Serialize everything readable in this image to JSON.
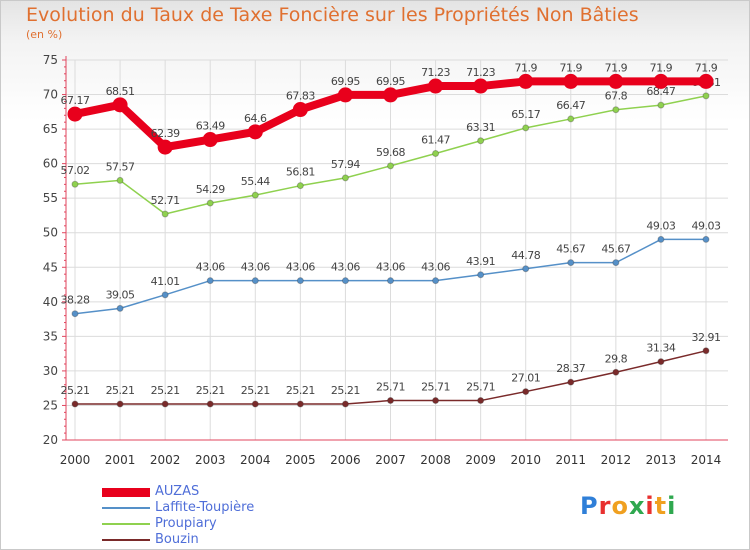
{
  "header": {
    "title": "Evolution du Taux de Taxe Foncière sur les Propriétés Non Bâties",
    "unit": "(en %)"
  },
  "logo": {
    "text": "Proxiti",
    "letter_colors": [
      "#2f7fd8",
      "#e8302f",
      "#f0a020",
      "#2fa84f",
      "#e8302f",
      "#f0a020",
      "#2fa84f"
    ]
  },
  "chart_data": {
    "type": "line",
    "title": "Evolution du Taux de Taxe Foncière sur les Propriétés Non Bâties",
    "ylabel": "(en %)",
    "x": [
      "2000",
      "2001",
      "2002",
      "2003",
      "2004",
      "2005",
      "2006",
      "2007",
      "2008",
      "2009",
      "2010",
      "2011",
      "2012",
      "2013",
      "2014"
    ],
    "ylim": [
      20,
      75
    ],
    "yticks": [
      20,
      25,
      30,
      35,
      40,
      45,
      50,
      55,
      60,
      65,
      70,
      75
    ],
    "grid": true,
    "legend_position": "bottom-left",
    "series": [
      {
        "name": "AUZAS",
        "color": "#e8001c",
        "emphasis": true,
        "values": [
          67.17,
          68.51,
          62.39,
          63.49,
          64.6,
          67.83,
          69.95,
          69.95,
          71.23,
          71.23,
          71.9,
          71.9,
          71.9,
          71.9,
          71.9
        ],
        "labels": [
          "67.17",
          "68.51",
          "62.39",
          "63.49",
          "64.6",
          "67.83",
          "69.95",
          "69.95",
          "71.23",
          "71.23",
          "71.9",
          "71.9",
          "71.9",
          "71.9",
          "71.9"
        ]
      },
      {
        "name": "Laffite-Toupière",
        "color": "#5590c8",
        "values": [
          38.28,
          39.05,
          41.01,
          43.06,
          43.06,
          43.06,
          43.06,
          43.06,
          43.06,
          43.91,
          44.78,
          45.67,
          45.67,
          49.03,
          49.03
        ],
        "labels": [
          "38.28",
          "39.05",
          "41.01",
          "43.06",
          "43.06",
          "43.06",
          "43.06",
          "43.06",
          "43.06",
          "43.91",
          "44.78",
          "45.67",
          "45.67",
          "49.03",
          "49.03"
        ]
      },
      {
        "name": "Proupiary",
        "color": "#8fd14f",
        "values": [
          57.02,
          57.57,
          52.71,
          54.29,
          55.44,
          56.81,
          57.94,
          59.68,
          61.47,
          63.31,
          65.17,
          66.47,
          67.8,
          68.47,
          69.81
        ],
        "labels": [
          "57.02",
          "57.57",
          "52.71",
          "54.29",
          "55.44",
          "56.81",
          "57.94",
          "59.68",
          "61.47",
          "63.31",
          "65.17",
          "66.47",
          "67.8",
          "68.47",
          "69.81"
        ]
      },
      {
        "name": "Bouzin",
        "color": "#7a2a2a",
        "values": [
          25.21,
          25.21,
          25.21,
          25.21,
          25.21,
          25.21,
          25.21,
          25.71,
          25.71,
          25.71,
          27.01,
          28.37,
          29.8,
          31.34,
          32.91
        ],
        "labels": [
          "25.21",
          "25.21",
          "25.21",
          "25.21",
          "25.21",
          "25.21",
          "25.21",
          "25.71",
          "25.71",
          "25.71",
          "27.01",
          "28.37",
          "29.8",
          "31.34",
          "32.91"
        ]
      }
    ]
  }
}
